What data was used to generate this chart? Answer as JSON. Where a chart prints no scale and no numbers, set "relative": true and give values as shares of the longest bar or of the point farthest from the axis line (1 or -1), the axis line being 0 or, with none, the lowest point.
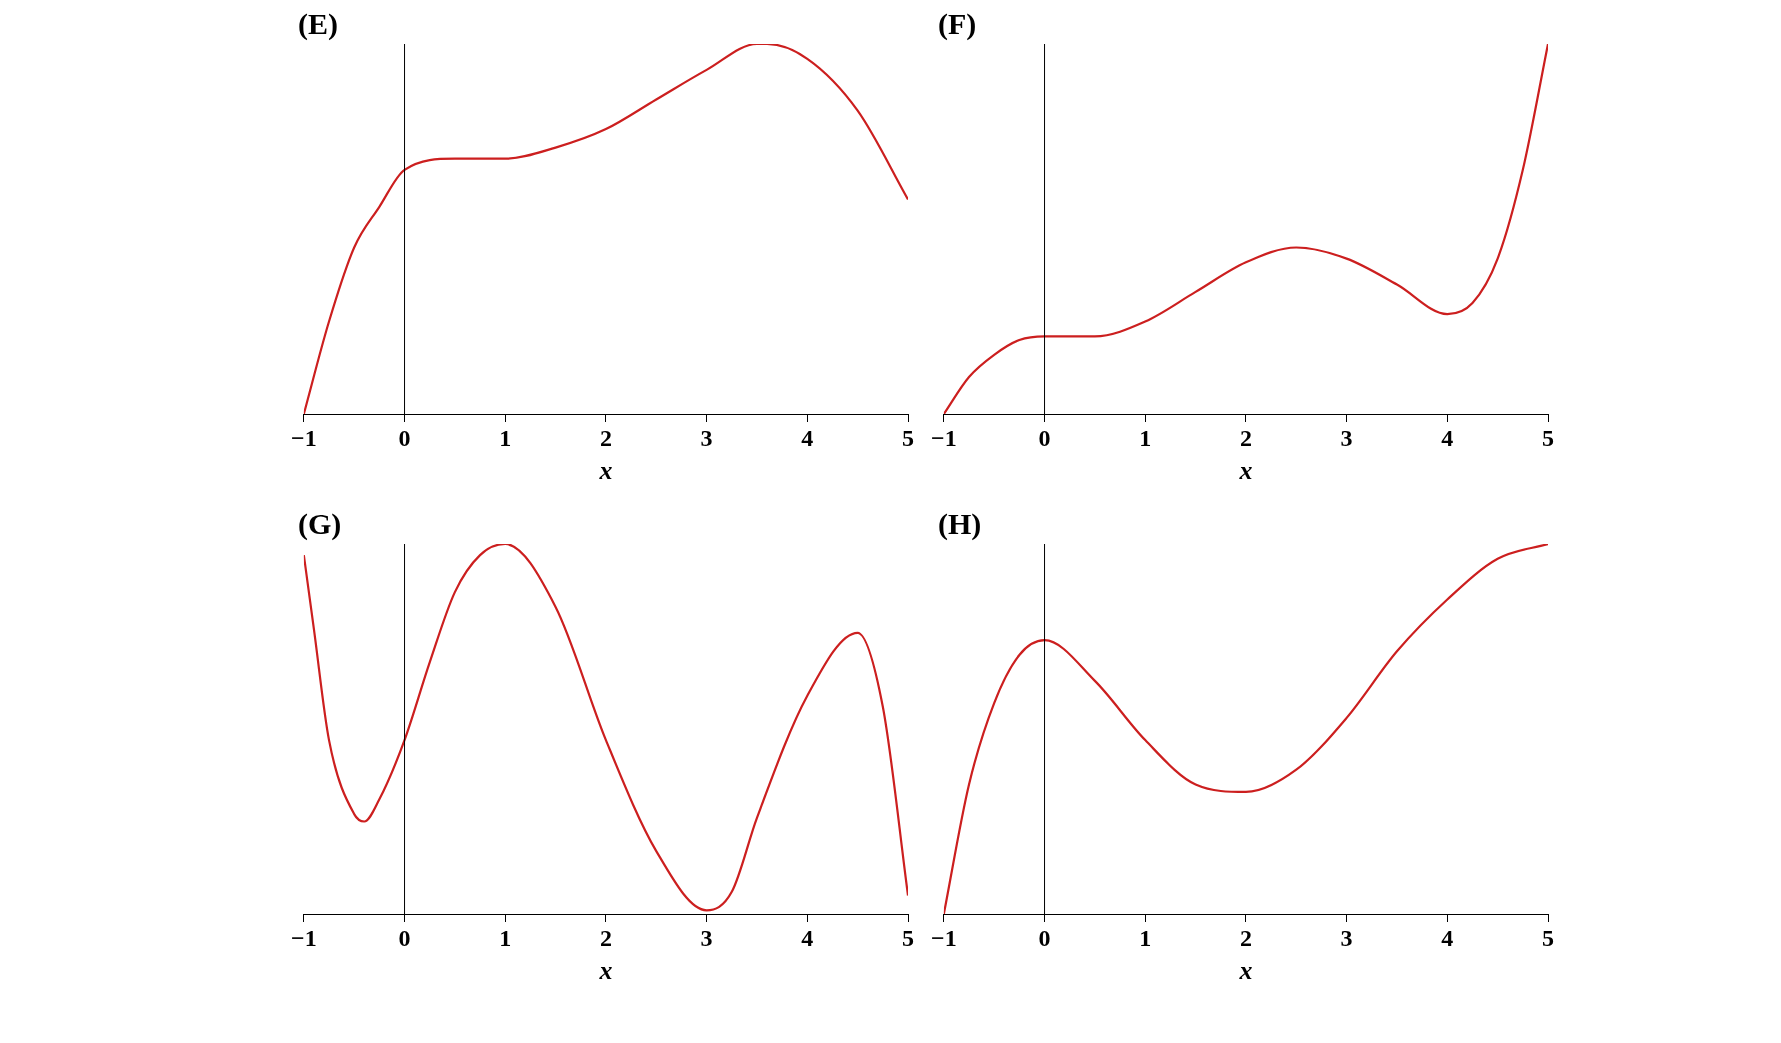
{
  "chart_data": [
    {
      "type": "line",
      "title": "(E)",
      "xlabel": "x",
      "ref_lines": [
        {
          "axis": "x",
          "value": 0,
          "color": "#000000"
        }
      ],
      "relative": true,
      "grid": false,
      "legend": false,
      "marker": "none",
      "xlim": [
        -1,
        5
      ],
      "xticks": [
        -1,
        0,
        1,
        2,
        3,
        4,
        5
      ],
      "x": [
        -1,
        -0.75,
        -0.5,
        -0.25,
        0,
        0.5,
        1,
        1.5,
        2,
        2.5,
        3,
        3.5,
        3.6,
        4,
        4.5,
        5
      ],
      "series": [
        {
          "color": "#cc1f1f",
          "values": [
            0,
            0.25,
            0.45,
            0.56,
            0.66,
            0.69,
            0.69,
            0.72,
            0.77,
            0.85,
            0.93,
            1.0,
            1.0,
            0.96,
            0.82,
            0.58
          ]
        }
      ]
    },
    {
      "type": "line",
      "title": "(F)",
      "xlabel": "x",
      "ref_lines": [
        {
          "axis": "x",
          "value": 0,
          "color": "#000000"
        }
      ],
      "relative": true,
      "grid": false,
      "legend": false,
      "marker": "none",
      "xlim": [
        -1,
        5
      ],
      "xticks": [
        -1,
        0,
        1,
        2,
        3,
        4,
        5
      ],
      "x": [
        -1,
        -0.75,
        -0.5,
        -0.25,
        0,
        0.5,
        1,
        1.5,
        2,
        2.5,
        3,
        3.5,
        4,
        4.25,
        4.5,
        4.75,
        5
      ],
      "series": [
        {
          "color": "#cc1f1f",
          "values": [
            0,
            0.1,
            0.16,
            0.2,
            0.21,
            0.21,
            0.25,
            0.33,
            0.41,
            0.45,
            0.42,
            0.35,
            0.27,
            0.3,
            0.42,
            0.66,
            1.0
          ]
        }
      ]
    },
    {
      "type": "line",
      "title": "(G)",
      "xlabel": "x",
      "ref_lines": [
        {
          "axis": "x",
          "value": 0,
          "color": "#000000"
        }
      ],
      "relative": true,
      "grid": false,
      "legend": false,
      "marker": "none",
      "xlim": [
        -1,
        5
      ],
      "xticks": [
        -1,
        0,
        1,
        2,
        3,
        4,
        5
      ],
      "x": [
        -1,
        -0.9,
        -0.75,
        -0.5,
        -0.4,
        -0.25,
        0,
        0.25,
        0.5,
        0.75,
        1,
        1.5,
        2,
        2.5,
        3,
        3.25,
        3.5,
        4,
        4.5,
        4.75,
        5
      ],
      "series": [
        {
          "color": "#cc1f1f",
          "values": [
            0.97,
            0.77,
            0.47,
            0.27,
            0.25,
            0.31,
            0.47,
            0.68,
            0.87,
            0.97,
            1.0,
            0.83,
            0.47,
            0.17,
            0.01,
            0.06,
            0.26,
            0.59,
            0.76,
            0.56,
            0.05
          ]
        }
      ]
    },
    {
      "type": "line",
      "title": "(H)",
      "xlabel": "x",
      "ref_lines": [
        {
          "axis": "x",
          "value": 0,
          "color": "#000000"
        }
      ],
      "relative": true,
      "grid": false,
      "legend": false,
      "marker": "none",
      "xlim": [
        -1,
        5
      ],
      "xticks": [
        -1,
        0,
        1,
        2,
        3,
        4,
        5
      ],
      "x": [
        -1,
        -0.75,
        -0.5,
        -0.25,
        0,
        0.5,
        1,
        1.5,
        2,
        2.5,
        3,
        3.5,
        4,
        4.5,
        5
      ],
      "series": [
        {
          "color": "#cc1f1f",
          "values": [
            0,
            0.35,
            0.57,
            0.7,
            0.74,
            0.63,
            0.47,
            0.35,
            0.33,
            0.39,
            0.53,
            0.71,
            0.85,
            0.96,
            1.0
          ]
        }
      ]
    }
  ]
}
